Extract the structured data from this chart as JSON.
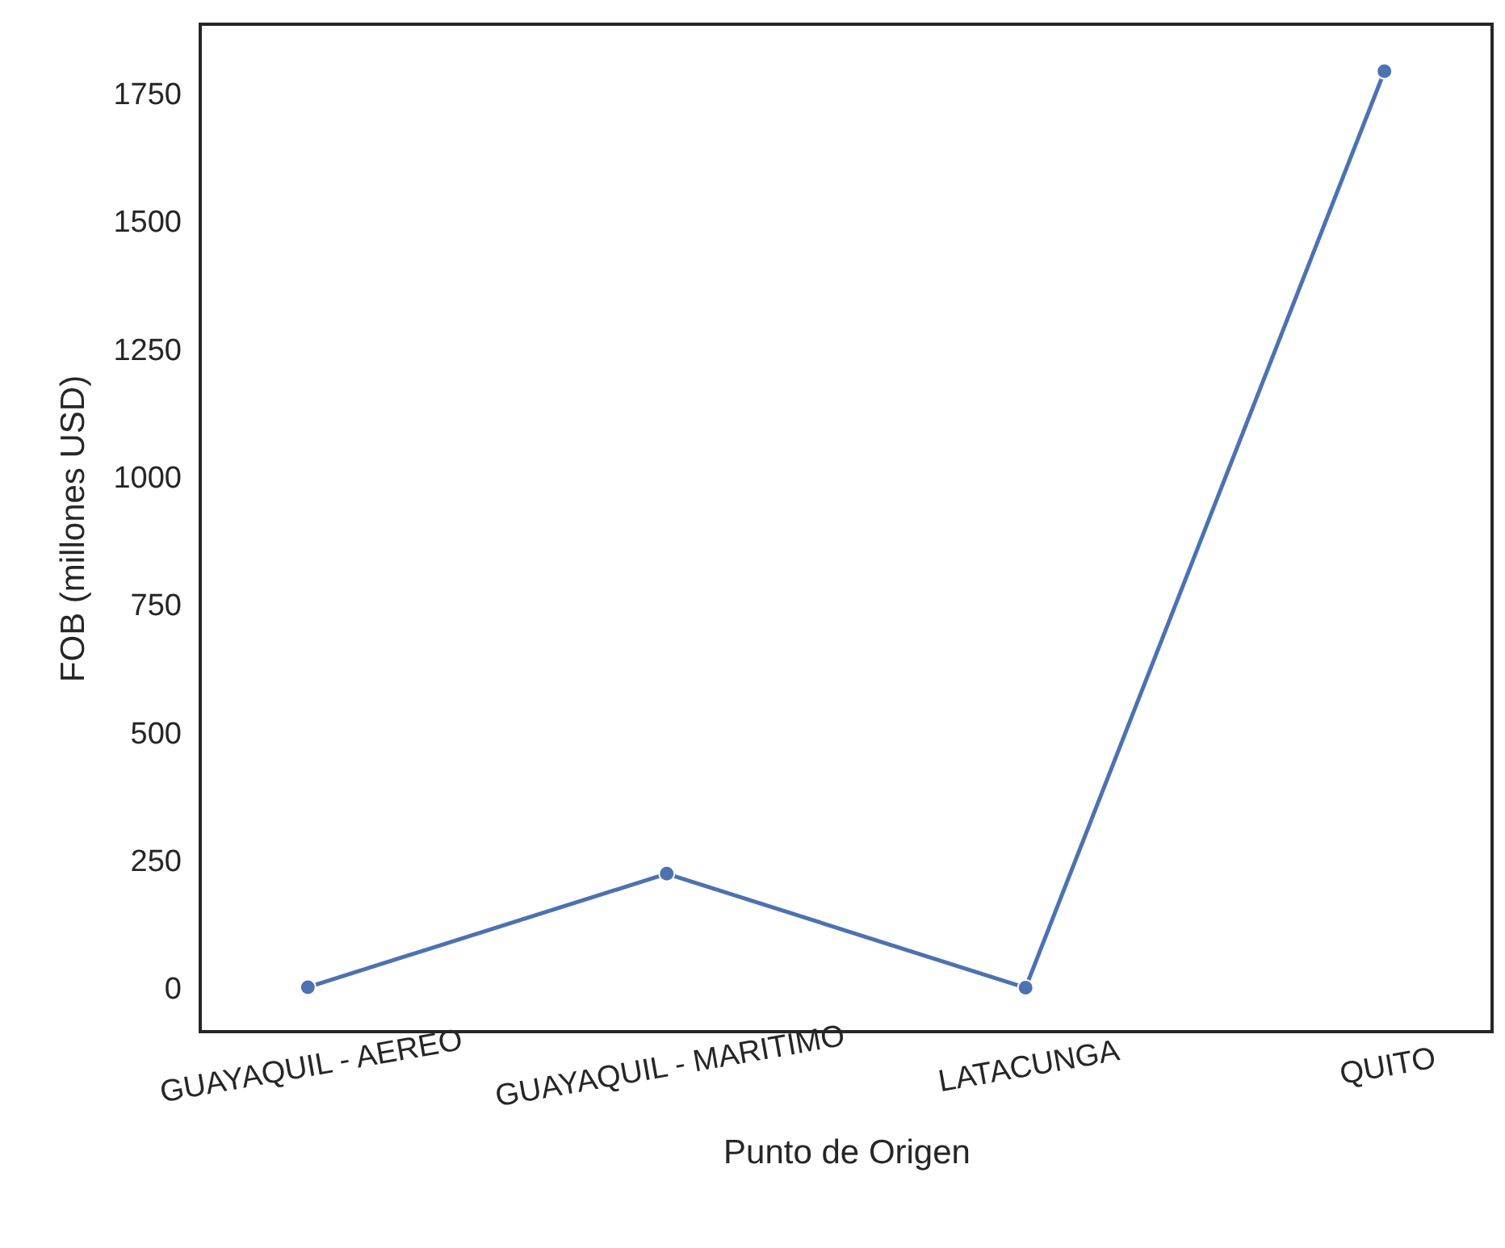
{
  "chart_data": {
    "type": "line",
    "xlabel": "Punto de Origen",
    "ylabel": "FOB (millones USD)",
    "categories": [
      "GUAYAQUIL - AEREO",
      "GUAYAQUIL - MARITIMO",
      "LATACUNGA",
      "QUITO"
    ],
    "series": [
      {
        "color": "#4c72b0",
        "values": [
          2,
          224,
          1,
          1794
        ]
      }
    ],
    "ylim": [
      -85,
      1886
    ],
    "yticks": [
      0,
      250,
      500,
      750,
      1000,
      1250,
      1500,
      1750
    ],
    "grid": false,
    "marker": "circle",
    "line_style": "solid"
  }
}
